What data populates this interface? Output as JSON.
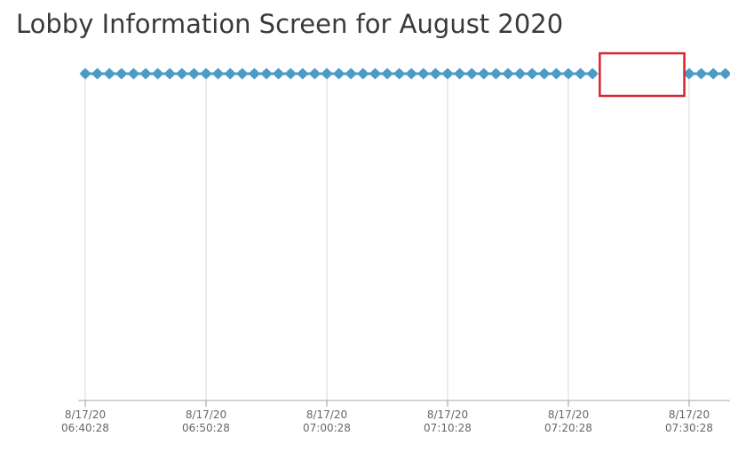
{
  "title": "Lobby Information Screen for August 2020",
  "chart_data": {
    "type": "scatter",
    "title": "Lobby Information Screen for August 2020",
    "x_start": "8/17/20 06:40:28",
    "x_tick_labels": [
      {
        "date": "8/17/20",
        "time": "06:40:28"
      },
      {
        "date": "8/17/20",
        "time": "06:50:28"
      },
      {
        "date": "8/17/20",
        "time": "07:00:28"
      },
      {
        "date": "8/17/20",
        "time": "07:10:28"
      },
      {
        "date": "8/17/20",
        "time": "07:20:28"
      },
      {
        "date": "8/17/20",
        "time": "07:30:28"
      }
    ],
    "marker_interval_seconds": 60,
    "series": [
      {
        "color": "#4b9bc6",
        "points_minutes_from_start": [
          0,
          1,
          2,
          3,
          4,
          5,
          6,
          7,
          8,
          9,
          10,
          11,
          12,
          13,
          14,
          15,
          16,
          17,
          18,
          19,
          20,
          21,
          22,
          23,
          24,
          25,
          26,
          27,
          28,
          29,
          30,
          31,
          32,
          33,
          34,
          35,
          36,
          37,
          38,
          39,
          40,
          41,
          42,
          50,
          51,
          52,
          53
        ]
      }
    ],
    "highlight": {
      "from_minutes": 42.6,
      "to_minutes": 49.6,
      "color": "#d9232d"
    },
    "grid": {
      "vertical": true,
      "color": "#d9d9d9"
    },
    "legend": "none"
  }
}
